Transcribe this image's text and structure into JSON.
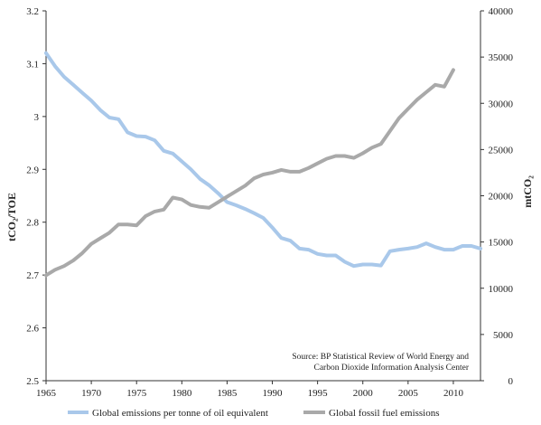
{
  "chart_data": {
    "type": "line",
    "title": "",
    "xlabel": "",
    "ylabel_left": "tCO₂/TOE",
    "ylabel_right": "mtCO₂",
    "xlim": [
      1965,
      2013
    ],
    "ylim_left": [
      2.5,
      3.2
    ],
    "ylim_right": [
      0,
      40000
    ],
    "x_ticks": [
      "1965",
      "1970",
      "1975",
      "1980",
      "1985",
      "1990",
      "1995",
      "2000",
      "2005",
      "2010"
    ],
    "y_left_ticks": [
      "2.5",
      "2.6",
      "2.7",
      "2.8",
      "2.9",
      "3",
      "3.1",
      "3.2"
    ],
    "y_right_ticks": [
      "0",
      "5000",
      "10000",
      "15000",
      "20000",
      "25000",
      "30000",
      "35000",
      "40000"
    ],
    "grid": false,
    "legend_position": "bottom",
    "annotation_lines": [
      "Source: BP Statistical Review of World Energy and",
      "Carbon Dioxide Information Analysis Center"
    ],
    "colors": {
      "series_1": "#a9c8ea",
      "series_2": "#a9a9a9"
    },
    "series": [
      {
        "name": "Global emissions per tonne of oil equivalent",
        "axis": "left",
        "x": [
          1965,
          1966,
          1967,
          1968,
          1969,
          1970,
          1971,
          1972,
          1973,
          1974,
          1975,
          1976,
          1977,
          1978,
          1979,
          1980,
          1981,
          1982,
          1983,
          1984,
          1985,
          1986,
          1987,
          1988,
          1989,
          1990,
          1991,
          1992,
          1993,
          1994,
          1995,
          1996,
          1997,
          1998,
          1999,
          2000,
          2001,
          2002,
          2003,
          2004,
          2005,
          2006,
          2007,
          2008,
          2009,
          2010,
          2011,
          2012,
          2013
        ],
        "values": [
          3.12,
          3.095,
          3.075,
          3.06,
          3.045,
          3.03,
          3.012,
          2.998,
          2.995,
          2.97,
          2.963,
          2.962,
          2.955,
          2.935,
          2.93,
          2.915,
          2.9,
          2.882,
          2.87,
          2.855,
          2.838,
          2.832,
          2.825,
          2.817,
          2.808,
          2.79,
          2.77,
          2.765,
          2.75,
          2.748,
          2.74,
          2.737,
          2.737,
          2.725,
          2.717,
          2.72,
          2.72,
          2.718,
          2.745,
          2.748,
          2.75,
          2.753,
          2.76,
          2.753,
          2.748,
          2.748,
          2.755,
          2.755,
          2.75
        ]
      },
      {
        "name": "Global fossil fuel emissions",
        "axis": "right",
        "x": [
          1965,
          1966,
          1967,
          1968,
          1969,
          1970,
          1971,
          1972,
          1973,
          1974,
          1975,
          1976,
          1977,
          1978,
          1979,
          1980,
          1981,
          1982,
          1983,
          1984,
          1985,
          1986,
          1987,
          1988,
          1989,
          1990,
          1991,
          1992,
          1993,
          1994,
          1995,
          1996,
          1997,
          1998,
          1999,
          2000,
          2001,
          2002,
          2003,
          2004,
          2005,
          2006,
          2007,
          2008,
          2009,
          2010
        ],
        "values": [
          11400,
          12000,
          12400,
          13000,
          13800,
          14800,
          15400,
          16000,
          16900,
          16900,
          16800,
          17800,
          18300,
          18500,
          19800,
          19600,
          19000,
          18800,
          18700,
          19300,
          19900,
          20500,
          21100,
          21900,
          22300,
          22500,
          22800,
          22600,
          22600,
          23000,
          23500,
          24000,
          24300,
          24300,
          24100,
          24600,
          25200,
          25600,
          27000,
          28400,
          29400,
          30400,
          31200,
          32000,
          31800,
          33600
        ]
      }
    ]
  }
}
